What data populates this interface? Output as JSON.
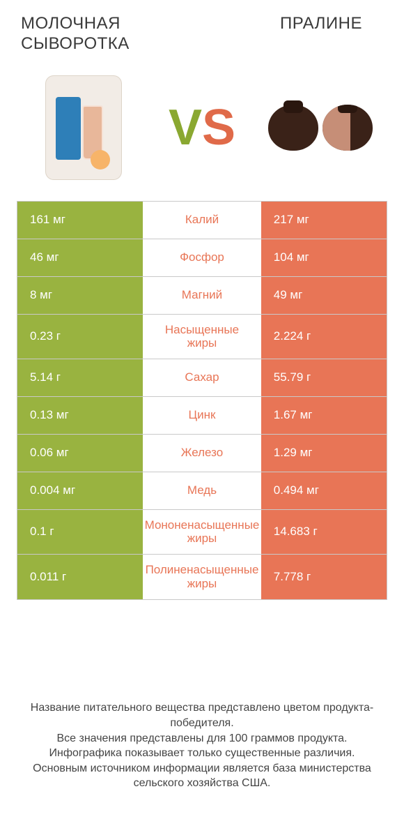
{
  "type": "infographic",
  "colors": {
    "left_bg": "#99b340",
    "right_bg": "#e87556",
    "mid_bg": "#ffffff",
    "border": "#c9c9c9",
    "vs_left": "#8aa831",
    "vs_right": "#e06a49",
    "text_dark": "#3a3a3a",
    "cell_text": "#ffffff"
  },
  "header": {
    "left_title": "МОЛОЧНАЯ СЫВОРОТКА",
    "right_title": "ПРАЛИНЕ"
  },
  "vs": {
    "v": "V",
    "s": "S"
  },
  "rows": [
    {
      "label": "Калий",
      "left": "161 мг",
      "right": "217 мг",
      "winner": "right",
      "tall": false
    },
    {
      "label": "Фосфор",
      "left": "46 мг",
      "right": "104 мг",
      "winner": "right",
      "tall": false
    },
    {
      "label": "Магний",
      "left": "8 мг",
      "right": "49 мг",
      "winner": "right",
      "tall": false
    },
    {
      "label": "Насыщенные жиры",
      "left": "0.23 г",
      "right": "2.224 г",
      "winner": "right",
      "tall": true
    },
    {
      "label": "Сахар",
      "left": "5.14 г",
      "right": "55.79 г",
      "winner": "right",
      "tall": false
    },
    {
      "label": "Цинк",
      "left": "0.13 мг",
      "right": "1.67 мг",
      "winner": "right",
      "tall": false
    },
    {
      "label": "Железо",
      "left": "0.06 мг",
      "right": "1.29 мг",
      "winner": "right",
      "tall": false
    },
    {
      "label": "Медь",
      "left": "0.004 мг",
      "right": "0.494 мг",
      "winner": "right",
      "tall": false
    },
    {
      "label": "Мононенасыщенные жиры",
      "left": "0.1 г",
      "right": "14.683 г",
      "winner": "right",
      "tall": true
    },
    {
      "label": "Полиненасыщенные жиры",
      "left": "0.011 г",
      "right": "7.778 г",
      "winner": "right",
      "tall": true
    }
  ],
  "footer": {
    "line1": "Название питательного вещества представлено цветом продукта-победителя.",
    "line2": "Все значения представлены для 100 граммов продукта.",
    "line3": "Инфографика показывает только существенные различия.",
    "line4": "Основным источником информации является база министерства сельского хозяйства США."
  },
  "typography": {
    "title_fontsize": 24,
    "cell_fontsize": 17,
    "footer_fontsize": 16,
    "vs_fontsize": 72
  }
}
